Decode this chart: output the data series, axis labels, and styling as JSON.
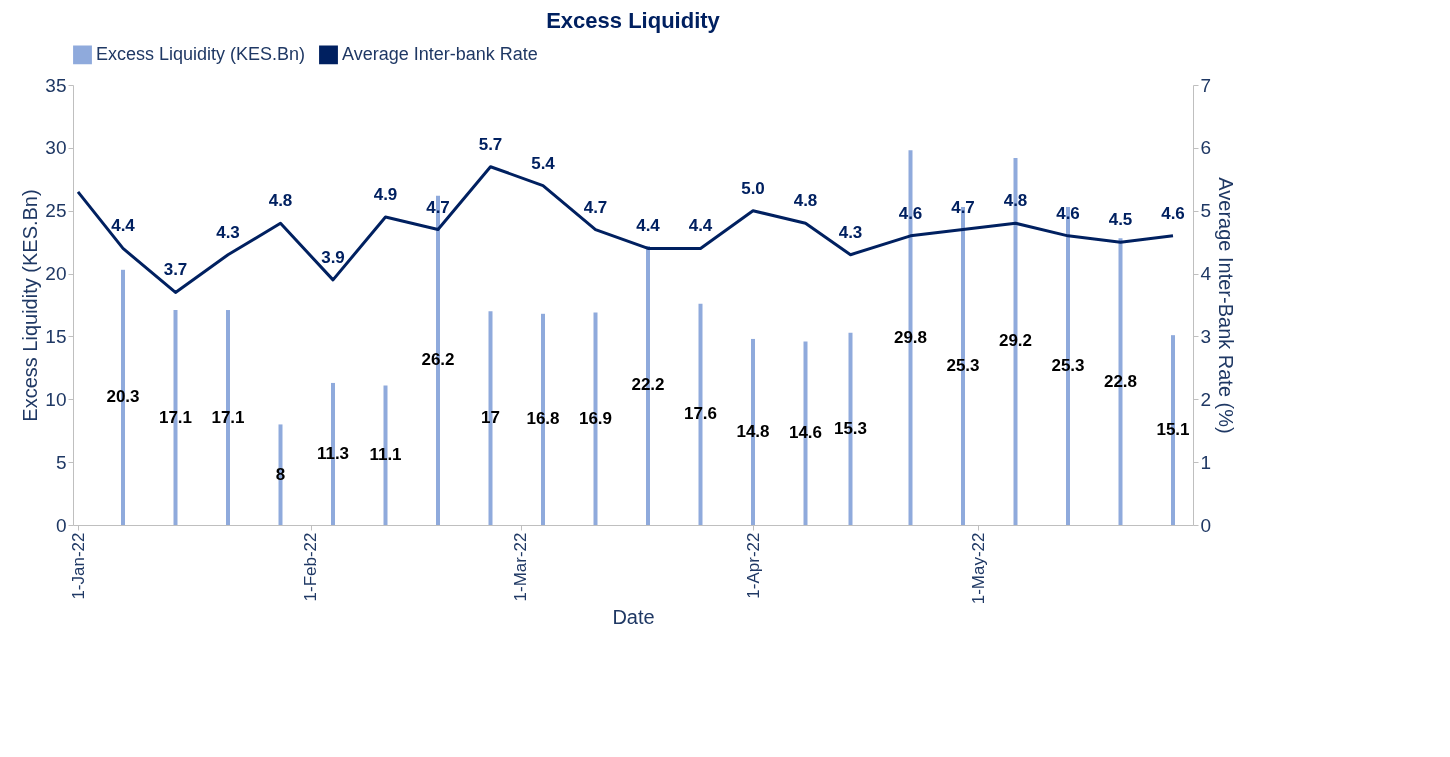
{
  "chart_data": {
    "type": "bar",
    "title": "Excess Liquidity",
    "xlabel": "Date",
    "ylabel": "Excess Liquidity (KES.Bn)",
    "y2label": "Average Inter-Bank Rate (%)",
    "xlim": [
      "2022-01-01",
      "2022-05-29"
    ],
    "xticks": [
      {
        "value": "2022-01-01",
        "label": "1-Jan-22"
      },
      {
        "value": "2022-02-01",
        "label": "1-Feb-22"
      },
      {
        "value": "2022-03-01",
        "label": "1-Mar-22"
      },
      {
        "value": "2022-04-01",
        "label": "1-Apr-22"
      },
      {
        "value": "2022-05-01",
        "label": "1-May-22"
      }
    ],
    "ylim": [
      0,
      35
    ],
    "yticks": [
      0,
      5,
      10,
      15,
      20,
      25,
      30,
      35
    ],
    "y2lim": [
      0,
      7
    ],
    "y2ticks": [
      0,
      1,
      2,
      3,
      4,
      5,
      6,
      7
    ],
    "legend": "top",
    "series": [
      {
        "name": "Excess Liquidity (KES.Bn)",
        "color": "#8faadc",
        "x": [
          "2022-01-07",
          "2022-01-14",
          "2022-01-21",
          "2022-01-28",
          "2022-02-04",
          "2022-02-11",
          "2022-02-18",
          "2022-02-25",
          "2022-03-04",
          "2022-03-11",
          "2022-03-18",
          "2022-03-25",
          "2022-04-01",
          "2022-04-08",
          "2022-04-14",
          "2022-04-22",
          "2022-04-29",
          "2022-05-06",
          "2022-05-13",
          "2022-05-20",
          "2022-05-27"
        ],
        "values": [
          20.3,
          17.1,
          17.1,
          8,
          11.3,
          11.1,
          26.2,
          17,
          16.8,
          16.9,
          22.2,
          17.6,
          14.8,
          14.6,
          15.3,
          29.8,
          25.3,
          29.2,
          25.3,
          22.8,
          15.1
        ],
        "value_labels": [
          "20.3",
          "17.1",
          "17.1",
          "8",
          "11.3",
          "11.1",
          "26.2",
          "17",
          "16.8",
          "16.9",
          "22.2",
          "17.6",
          "14.8",
          "14.6",
          "15.3",
          "29.8",
          "25.3",
          "29.2",
          "25.3",
          "22.8",
          "15.1"
        ]
      },
      {
        "name": "Average Inter-bank Rate",
        "type": "line",
        "axis": "y2",
        "color": "#002060",
        "x": [
          "2022-01-01",
          "2022-01-07",
          "2022-01-14",
          "2022-01-21",
          "2022-01-28",
          "2022-02-04",
          "2022-02-11",
          "2022-02-18",
          "2022-02-25",
          "2022-03-04",
          "2022-03-11",
          "2022-03-18",
          "2022-03-25",
          "2022-04-01",
          "2022-04-08",
          "2022-04-14",
          "2022-04-22",
          "2022-04-29",
          "2022-05-06",
          "2022-05-13",
          "2022-05-20",
          "2022-05-27"
        ],
        "values": [
          5.3,
          4.4,
          3.7,
          4.3,
          4.8,
          3.9,
          4.9,
          4.7,
          5.7,
          5.4,
          4.7,
          4.4,
          4.4,
          5.0,
          4.8,
          4.3,
          4.6,
          4.7,
          4.8,
          4.6,
          4.5,
          4.6
        ],
        "value_labels": [
          null,
          "4.4",
          "3.7",
          "4.3",
          "4.8",
          "3.9",
          "4.9",
          "4.7",
          "5.7",
          "5.4",
          "4.7",
          "4.4",
          "4.4",
          "5.0",
          "4.8",
          "4.3",
          "4.6",
          "4.7",
          "4.8",
          "4.6",
          "4.5",
          "4.6"
        ]
      }
    ]
  }
}
